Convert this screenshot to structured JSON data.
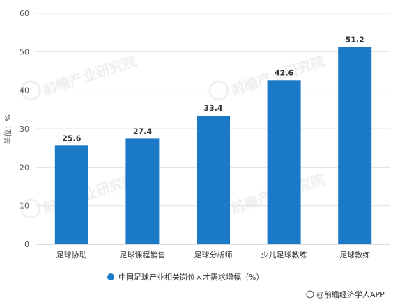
{
  "chart_data": {
    "type": "bar",
    "categories": [
      "足球协助",
      "足球课程销售",
      "足球分析师",
      "少儿足球教练",
      "足球教练"
    ],
    "series": [
      {
        "name": "中国足球产业相关岗位人才需求增幅（%）",
        "values": [
          25.6,
          27.4,
          33.4,
          42.6,
          51.2
        ],
        "color": "#1a7ac7"
      }
    ],
    "value_labels": [
      "25.6",
      "27.4",
      "33.4",
      "42.6",
      "51.2"
    ],
    "ylabel": "单位：%",
    "ylim": [
      0,
      60
    ],
    "yticks": [
      "0",
      "10",
      "20",
      "30",
      "40",
      "50",
      "60"
    ],
    "grid": true,
    "legend_position": "bottom"
  },
  "source": "@前瞻经济学人APP",
  "watermark": "前瞻产业研究院"
}
